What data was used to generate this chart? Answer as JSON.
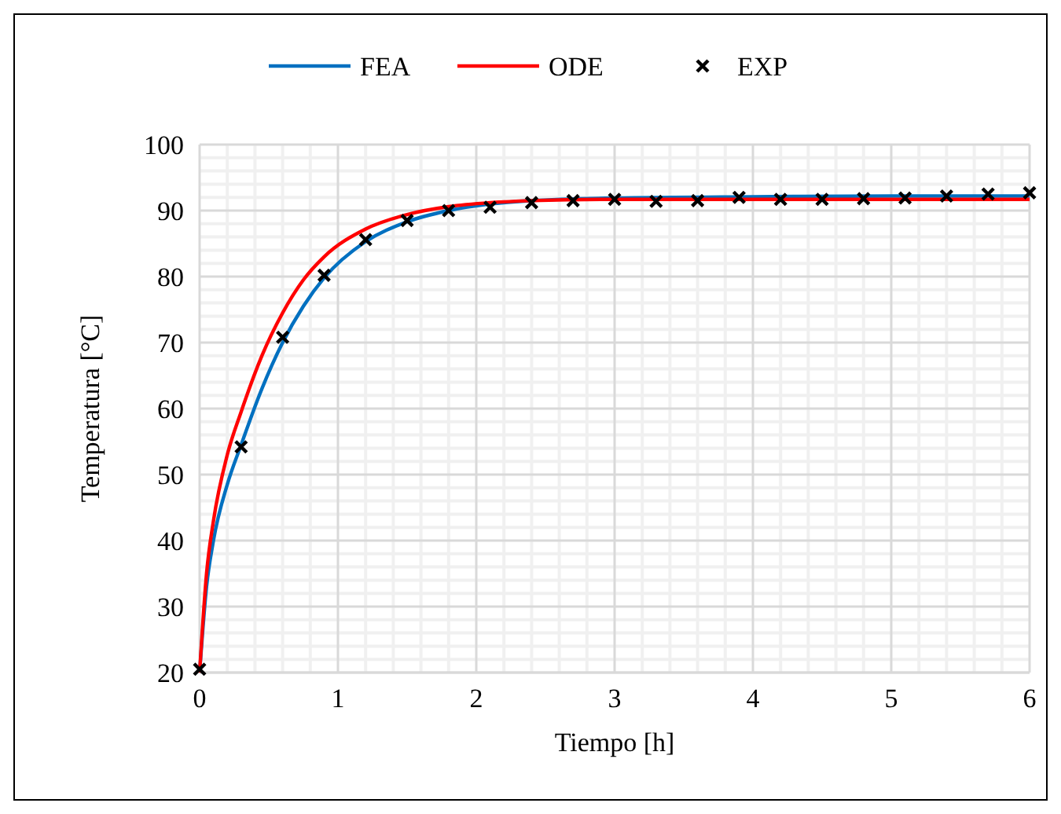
{
  "chart_data": {
    "type": "line",
    "xlabel": "Tiempo [h]",
    "ylabel": "Temperatura [°C]",
    "xlim": [
      0,
      6
    ],
    "xticks": [
      0,
      1,
      2,
      3,
      4,
      5,
      6
    ],
    "ylim": [
      20,
      100
    ],
    "yticks": [
      20,
      30,
      40,
      50,
      60,
      70,
      80,
      90,
      100
    ],
    "grid": true,
    "legend": "top",
    "series": [
      {
        "name": "FEA",
        "color": "#0070c0",
        "marker": "none",
        "x": [
          0,
          0.05,
          0.1,
          0.2,
          0.3,
          0.45,
          0.6,
          0.75,
          0.9,
          1.2,
          1.5,
          1.8,
          2.1,
          2.4,
          3,
          4,
          5,
          6
        ],
        "values": [
          20,
          33,
          40,
          48.5,
          54.5,
          63,
          70,
          75.5,
          79.8,
          85.3,
          88.3,
          90,
          91,
          91.5,
          91.9,
          92.1,
          92.2,
          92.2
        ]
      },
      {
        "name": "ODE",
        "color": "#ff0000",
        "marker": "none",
        "x": [
          0,
          0.05,
          0.1,
          0.2,
          0.3,
          0.45,
          0.6,
          0.75,
          0.9,
          1.2,
          1.5,
          1.8,
          2.1,
          2.4,
          3,
          4,
          5,
          6
        ],
        "values": [
          20,
          35,
          43,
          53,
          59.5,
          68,
          74.5,
          79.5,
          83,
          87.2,
          89.4,
          90.6,
          91.2,
          91.5,
          91.7,
          91.7,
          91.7,
          91.7
        ]
      },
      {
        "name": "EXP",
        "color": "#000000",
        "type": "scatter",
        "marker": "cross",
        "x": [
          0,
          0.3,
          0.6,
          0.9,
          1.2,
          1.5,
          1.8,
          2.1,
          2.4,
          2.7,
          3,
          3.3,
          3.6,
          3.9,
          4.2,
          4.5,
          4.8,
          5.1,
          5.4,
          5.7,
          6
        ],
        "values": [
          20.5,
          54.2,
          70.8,
          80.2,
          85.6,
          88.5,
          90,
          90.5,
          91.2,
          91.5,
          91.7,
          91.4,
          91.5,
          92,
          91.7,
          91.7,
          91.8,
          91.9,
          92.2,
          92.5,
          92.7
        ]
      }
    ]
  }
}
